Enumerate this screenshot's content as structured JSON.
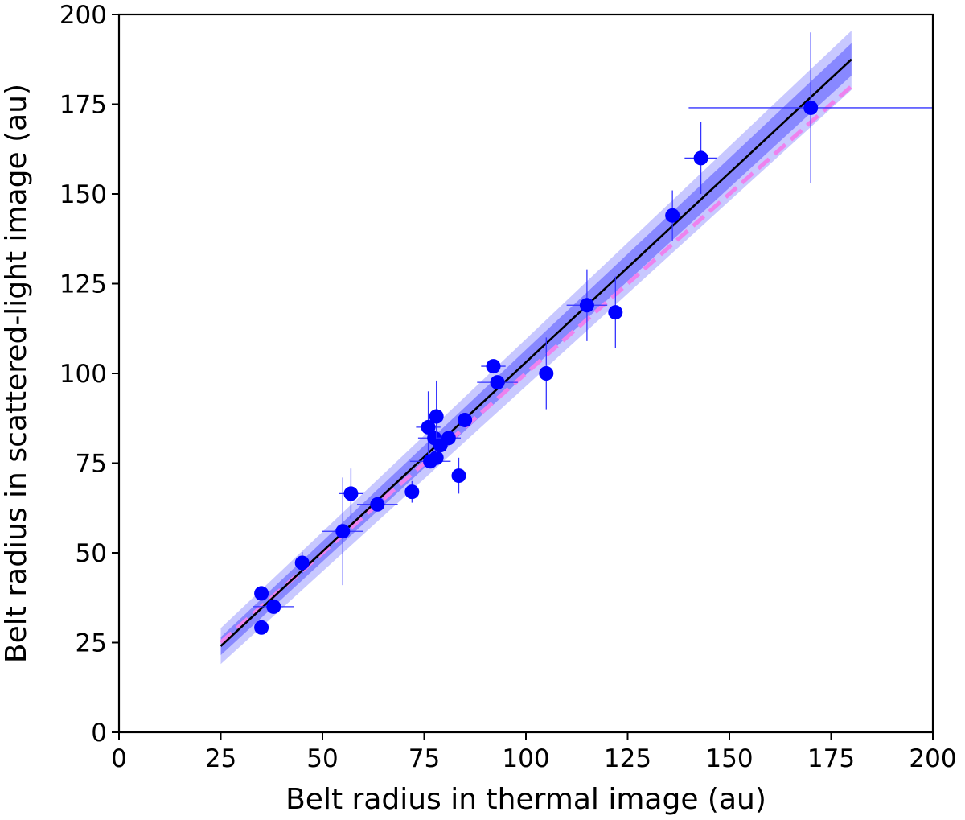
{
  "chart_data": {
    "type": "scatter",
    "title": "",
    "xlabel": "Belt radius in thermal image (au)",
    "ylabel": "Belt radius in scattered-light image (au)",
    "xlim": [
      0,
      200
    ],
    "ylim": [
      0,
      200
    ],
    "xticks": [
      0,
      25,
      50,
      75,
      100,
      125,
      150,
      175,
      200
    ],
    "yticks": [
      0,
      25,
      50,
      75,
      100,
      125,
      150,
      175,
      200
    ],
    "grid": false,
    "legend": "none",
    "colors": {
      "points": "#0000ff",
      "errorbars": "#3333ff",
      "fit_line": "#000000",
      "one_to_one_line": "#ee82ee",
      "band_inner": "#8888ff",
      "band_outer": "#c8c8ff"
    },
    "points": [
      {
        "x": 35,
        "y": 38.7,
        "xerr": 0,
        "yerr": 0
      },
      {
        "x": 35,
        "y": 29.2,
        "xerr": 0,
        "yerr": 0
      },
      {
        "x": 38,
        "y": 35,
        "xerr": 5,
        "yerr": 0
      },
      {
        "x": 45,
        "y": 47.2,
        "xerr": 0,
        "yerr": 3
      },
      {
        "x": 55,
        "y": 56,
        "xerr": 5,
        "yerr": 15
      },
      {
        "x": 57,
        "y": 66.5,
        "xerr": 3,
        "yerr": 7
      },
      {
        "x": 63.5,
        "y": 63.5,
        "xerr": 5,
        "yerr": 0
      },
      {
        "x": 72,
        "y": 67,
        "xerr": 0,
        "yerr": 3
      },
      {
        "x": 76,
        "y": 85,
        "xerr": 3,
        "yerr": 10
      },
      {
        "x": 76.5,
        "y": 75.5,
        "xerr": 5,
        "yerr": 0
      },
      {
        "x": 77.5,
        "y": 82,
        "xerr": 4,
        "yerr": 0
      },
      {
        "x": 78,
        "y": 76.5,
        "xerr": 0,
        "yerr": 0
      },
      {
        "x": 78,
        "y": 88,
        "xerr": 0,
        "yerr": 10
      },
      {
        "x": 79,
        "y": 80,
        "xerr": 0,
        "yerr": 0
      },
      {
        "x": 81,
        "y": 82,
        "xerr": 3,
        "yerr": 0
      },
      {
        "x": 83.5,
        "y": 71.5,
        "xerr": 0,
        "yerr": 5
      },
      {
        "x": 85,
        "y": 87,
        "xerr": 0,
        "yerr": 0
      },
      {
        "x": 92,
        "y": 102,
        "xerr": 3,
        "yerr": 0
      },
      {
        "x": 93,
        "y": 97.5,
        "xerr": 5,
        "yerr": 0
      },
      {
        "x": 105,
        "y": 100,
        "xerr": 0,
        "yerr": 10
      },
      {
        "x": 115,
        "y": 119,
        "xerr": 5,
        "yerr": 10
      },
      {
        "x": 122,
        "y": 117,
        "xerr": 0,
        "yerr": 10
      },
      {
        "x": 136,
        "y": 144,
        "xerr": 0,
        "yerr": 7
      },
      {
        "x": 143,
        "y": 160,
        "xerr": 4,
        "yerr": 10
      },
      {
        "x": 170,
        "y": 174,
        "xerr": 30,
        "yerr": 21
      }
    ],
    "fit_line": {
      "x": [
        25,
        180
      ],
      "y": [
        24,
        187.5
      ]
    },
    "one_to_one_line": {
      "x": [
        25,
        180
      ],
      "y": [
        25,
        180
      ]
    },
    "band_inner": {
      "x": [
        25,
        180
      ],
      "y_low": [
        21.5,
        183
      ],
      "y_high": [
        26.5,
        192
      ]
    },
    "band_outer": {
      "x": [
        25,
        180
      ],
      "y_low": [
        19,
        179
      ],
      "y_high": [
        29,
        195.5
      ]
    }
  }
}
